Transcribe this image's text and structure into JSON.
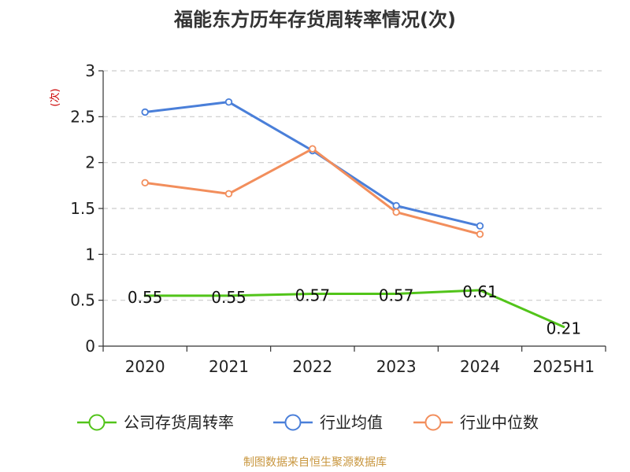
{
  "chart_data": {
    "type": "line",
    "title": "福能东方历年存货周转率情况(次)",
    "ylabel": "(次)",
    "ylim": [
      0,
      3
    ],
    "yticks": [
      "0",
      "0.5",
      "1",
      "1.5",
      "2",
      "2.5",
      "3"
    ],
    "ytick_values": [
      0,
      0.5,
      1,
      1.5,
      2,
      2.5,
      3
    ],
    "categories": [
      "2020",
      "2021",
      "2022",
      "2023",
      "2024",
      "2025H1"
    ],
    "grid": true,
    "legend_position": "bottom",
    "series": [
      {
        "name": "公司存货周转率",
        "color": "#52c41a",
        "values": [
          0.55,
          0.55,
          0.57,
          0.57,
          0.61,
          0.21
        ],
        "labels": [
          "0.55",
          "0.55",
          "0.57",
          "0.57",
          "0.61",
          "0.21"
        ],
        "markers": false
      },
      {
        "name": "行业均值",
        "color": "#4a7fd9",
        "values": [
          2.55,
          2.66,
          2.13,
          1.53,
          1.31,
          null
        ],
        "markers": true
      },
      {
        "name": "行业中位数",
        "color": "#f28e5c",
        "values": [
          1.78,
          1.66,
          2.15,
          1.46,
          1.22,
          null
        ],
        "markers": true
      }
    ]
  },
  "source": "制图数据来自恒生聚源数据库"
}
